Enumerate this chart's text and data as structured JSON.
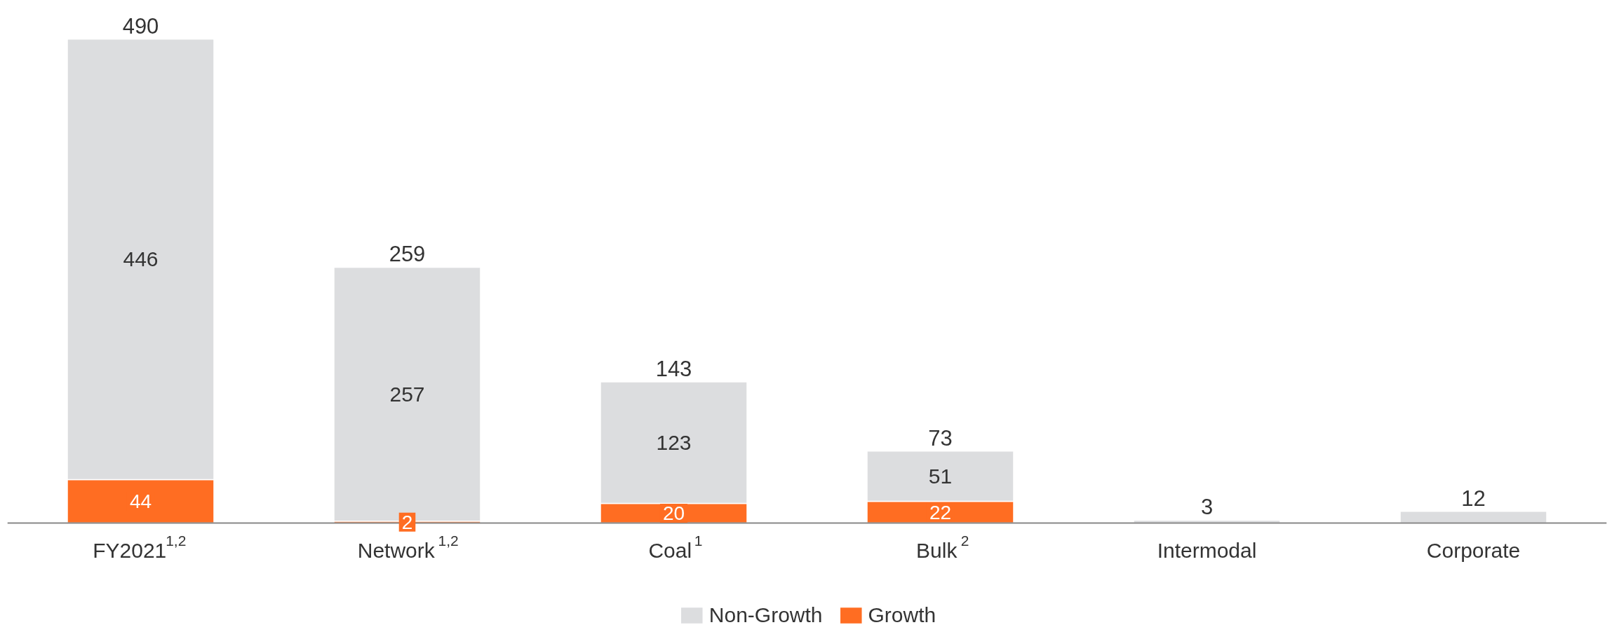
{
  "chart_data": {
    "type": "bar",
    "stacked": true,
    "categories": [
      "FY2021$^{1,2}$",
      "Network$^{1,2}$",
      "Coal$^{1}$",
      "Bulk$^{2}$",
      "Intermodal",
      "Corporate"
    ],
    "series": [
      {
        "name": "Growth",
        "color": "#ff6d22",
        "values": [
          44,
          2,
          20,
          22,
          null,
          null
        ],
        "value_labels": [
          "44",
          "2",
          "20",
          "22",
          null,
          null
        ]
      },
      {
        "name": "Non-Growth",
        "color": "#dcdddf",
        "values": [
          446,
          257,
          123,
          51,
          3,
          12
        ],
        "value_labels": [
          "446",
          "257",
          "123",
          "51",
          null,
          null
        ]
      }
    ],
    "totals": [
      "490",
      "259",
      "143",
      "73",
      "3",
      "12"
    ],
    "legend": "bottom"
  }
}
